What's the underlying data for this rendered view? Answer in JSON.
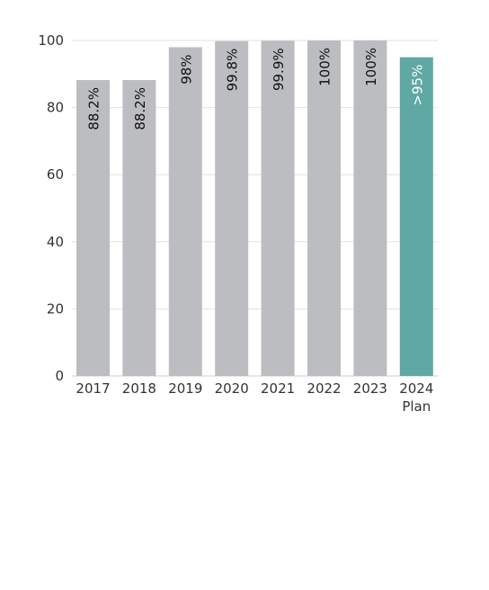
{
  "chart_data": {
    "type": "bar",
    "categories": [
      "2017",
      "2018",
      "2019",
      "2020",
      "2021",
      "2022",
      "2023",
      "2024\nPlan"
    ],
    "values": [
      88.2,
      88.2,
      98,
      99.8,
      99.9,
      100,
      100,
      95
    ],
    "data_labels": [
      "88.2%",
      "88.2%",
      "98%",
      "99.8%",
      "99.9%",
      "100%",
      "100%",
      ">95%"
    ],
    "highlight_index": 7,
    "ylim": [
      0,
      100
    ],
    "yticks": [
      0,
      20,
      40,
      60,
      80,
      100
    ],
    "grid": true,
    "title": "",
    "xlabel": "",
    "ylabel": "",
    "colors": {
      "bar": "#bcbdc0",
      "highlight": "#5fa8a3",
      "label_dark": "#111111",
      "label_light": "#ffffff",
      "grid": "#e2e2e2"
    }
  }
}
